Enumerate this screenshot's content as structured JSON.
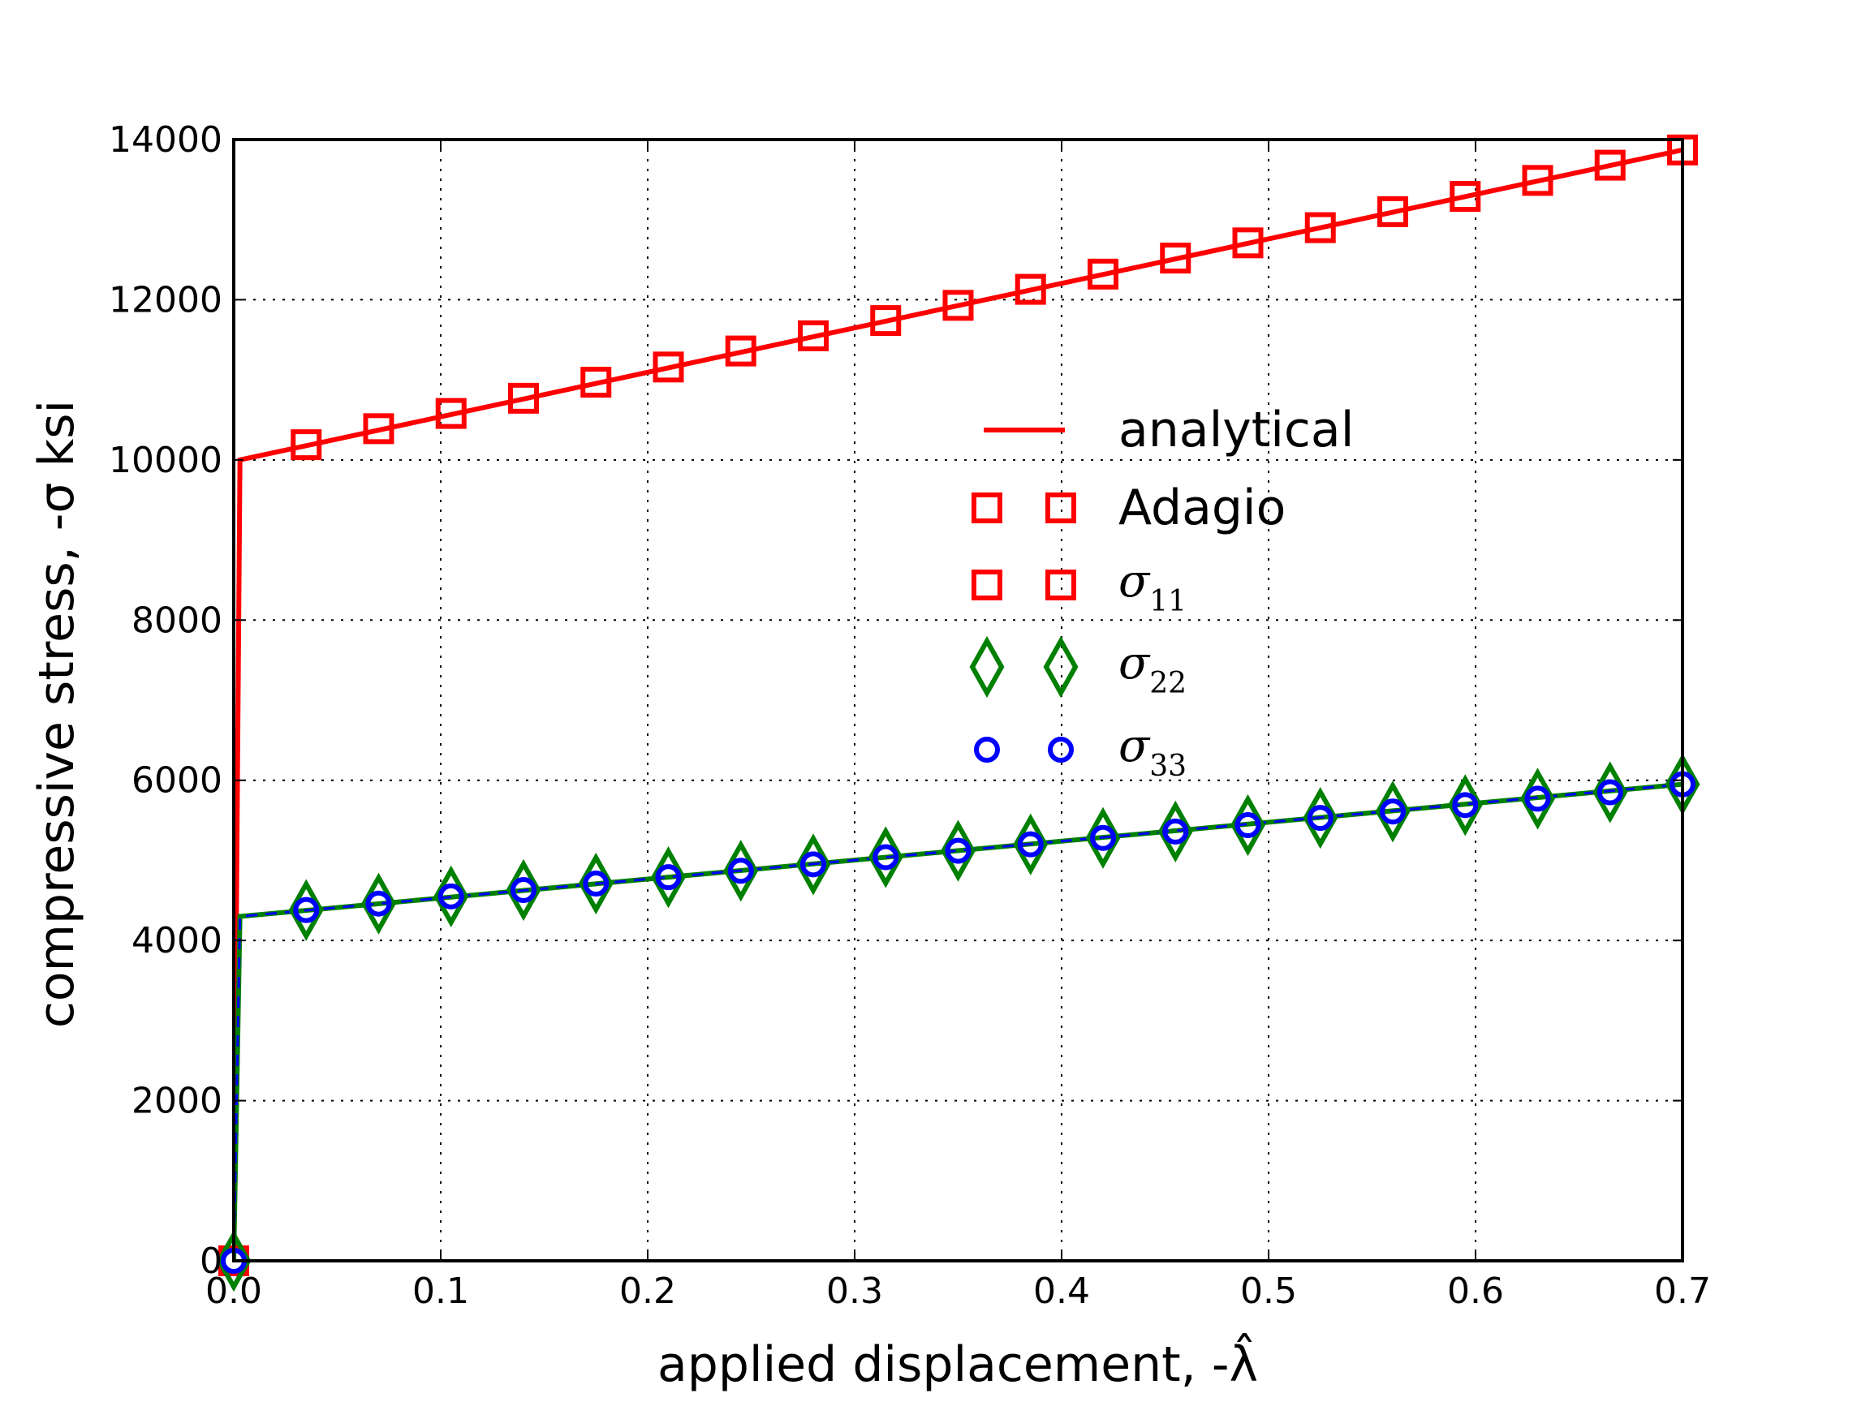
{
  "chart_data": {
    "type": "line",
    "title": "",
    "xlabel": "applied displacement, -λ̂",
    "ylabel": "compressive stress, -σ ksi",
    "xlim": [
      0.0,
      0.7
    ],
    "ylim": [
      0,
      14000
    ],
    "xticks": [
      "0.0",
      "0.1",
      "0.2",
      "0.3",
      "0.4",
      "0.5",
      "0.6",
      "0.7"
    ],
    "yticks": [
      "0",
      "2000",
      "4000",
      "6000",
      "8000",
      "10000",
      "12000",
      "14000"
    ],
    "grid": true,
    "legend_position": "center-right",
    "series": [
      {
        "name": "analytical",
        "kind": "line",
        "color": "#ff0000",
        "x": [
          0,
          0.003,
          0.7
        ],
        "y": [
          0,
          10000,
          13870
        ]
      },
      {
        "name": "analytical (lower)",
        "kind": "line",
        "color": "#008000",
        "x": [
          0,
          0.003,
          0.7
        ],
        "y": [
          0,
          4300,
          5950
        ]
      },
      {
        "name": "σ11",
        "kind": "marker",
        "marker": "square",
        "color": "#ff0000",
        "x": [
          0,
          0.035,
          0.07,
          0.105,
          0.14,
          0.175,
          0.21,
          0.245,
          0.28,
          0.315,
          0.35,
          0.385,
          0.42,
          0.455,
          0.49,
          0.525,
          0.56,
          0.595,
          0.63,
          0.665,
          0.7
        ],
        "y": [
          0,
          10190,
          10390,
          10580,
          10770,
          10970,
          11160,
          11360,
          11550,
          11740,
          11930,
          12130,
          12320,
          12520,
          12710,
          12900,
          13100,
          13290,
          13490,
          13680,
          13870
        ]
      },
      {
        "name": "σ22",
        "kind": "marker",
        "marker": "diamond",
        "color": "#008000",
        "x": [
          0,
          0.035,
          0.07,
          0.105,
          0.14,
          0.175,
          0.21,
          0.245,
          0.28,
          0.315,
          0.35,
          0.385,
          0.42,
          0.455,
          0.49,
          0.525,
          0.56,
          0.595,
          0.63,
          0.665,
          0.7
        ],
        "y": [
          0,
          4380,
          4460,
          4550,
          4630,
          4710,
          4790,
          4870,
          4950,
          5040,
          5120,
          5200,
          5280,
          5360,
          5440,
          5530,
          5610,
          5690,
          5770,
          5850,
          5950
        ]
      },
      {
        "name": "σ33",
        "kind": "marker",
        "marker": "circle",
        "color": "#0000ff",
        "x": [
          0,
          0.035,
          0.07,
          0.105,
          0.14,
          0.175,
          0.21,
          0.245,
          0.28,
          0.315,
          0.35,
          0.385,
          0.42,
          0.455,
          0.49,
          0.525,
          0.56,
          0.595,
          0.63,
          0.665,
          0.7
        ],
        "y": [
          0,
          4380,
          4460,
          4550,
          4630,
          4710,
          4790,
          4870,
          4950,
          5040,
          5120,
          5200,
          5280,
          5360,
          5440,
          5530,
          5610,
          5690,
          5770,
          5850,
          5950
        ]
      }
    ],
    "legend": [
      {
        "label": "analytical",
        "symbol": "line",
        "color": "#ff0000"
      },
      {
        "label": "Adagio",
        "symbol": "square",
        "color": "#ff0000"
      },
      {
        "label": "σ",
        "sub": "11",
        "symbol": "square",
        "color": "#ff0000"
      },
      {
        "label": "σ",
        "sub": "22",
        "symbol": "diamond",
        "color": "#008000"
      },
      {
        "label": "σ",
        "sub": "33",
        "symbol": "circle",
        "color": "#0000ff"
      }
    ]
  }
}
